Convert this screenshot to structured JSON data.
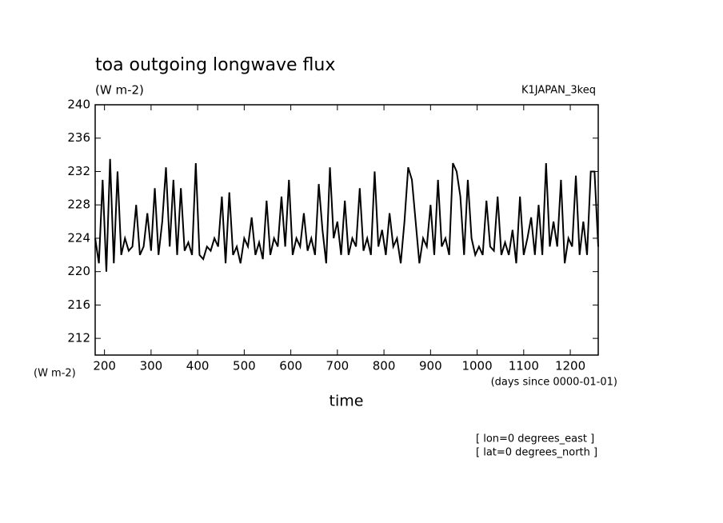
{
  "chart_data": {
    "type": "line",
    "title": "toa outgoing longwave flux",
    "y_units": "(W m-2)",
    "run_name": "K1JAPAN_3keq",
    "xlabel": "time",
    "x_units": "(days since 0000-01-01)",
    "notes": [
      "[ lon=0 degrees_east ]",
      "[ lat=0 degrees_north ]"
    ],
    "color": "#000000",
    "xlim": [
      180,
      1260
    ],
    "ylim": [
      210,
      240
    ],
    "xticks": [
      200,
      300,
      400,
      500,
      600,
      700,
      800,
      900,
      1000,
      1100,
      1200
    ],
    "yticks": [
      212,
      216,
      220,
      224,
      228,
      232,
      236,
      240
    ],
    "x": [
      180,
      188,
      196,
      204,
      212,
      220,
      228,
      236,
      244,
      252,
      260,
      268,
      276,
      284,
      292,
      300,
      308,
      316,
      324,
      332,
      340,
      348,
      356,
      364,
      372,
      380,
      388,
      396,
      404,
      412,
      420,
      428,
      436,
      444,
      452,
      460,
      468,
      476,
      484,
      492,
      500,
      508,
      516,
      524,
      532,
      540,
      548,
      556,
      564,
      572,
      580,
      588,
      596,
      604,
      612,
      620,
      628,
      636,
      644,
      652,
      660,
      668,
      676,
      684,
      692,
      700,
      708,
      716,
      724,
      732,
      740,
      748,
      756,
      764,
      772,
      780,
      788,
      796,
      804,
      812,
      820,
      828,
      836,
      844,
      852,
      860,
      868,
      876,
      884,
      892,
      900,
      908,
      916,
      924,
      932,
      940,
      948,
      956,
      964,
      972,
      980,
      988,
      996,
      1004,
      1012,
      1020,
      1028,
      1036,
      1044,
      1052,
      1060,
      1068,
      1076,
      1084,
      1092,
      1100,
      1108,
      1116,
      1124,
      1132,
      1140,
      1148,
      1156,
      1164,
      1172,
      1180,
      1188,
      1196,
      1204,
      1212,
      1220,
      1228,
      1236,
      1244,
      1252,
      1260
    ],
    "values": [
      224,
      221,
      231,
      220,
      233.5,
      221,
      232,
      222,
      224,
      222.5,
      223,
      228,
      222,
      223,
      227,
      222.5,
      230,
      222,
      226,
      232.5,
      223,
      231,
      222,
      230,
      222.5,
      223.5,
      222,
      233,
      222,
      221.5,
      223,
      222.5,
      224,
      223,
      229,
      221,
      229.5,
      222,
      223,
      221,
      224,
      223,
      226.5,
      222,
      223.5,
      221.5,
      228.5,
      222,
      224,
      223,
      229,
      223,
      231,
      222,
      224,
      223,
      227,
      222.5,
      224,
      222,
      230.5,
      225,
      221,
      232.5,
      224,
      226,
      222,
      228.5,
      222,
      224,
      223,
      230,
      222.5,
      224,
      222,
      232,
      223,
      225,
      222,
      227,
      223,
      224,
      221,
      226,
      232.5,
      231,
      226,
      221,
      224,
      223,
      228,
      222,
      231,
      223,
      224,
      222,
      233,
      232,
      229,
      222,
      231,
      224,
      222,
      223,
      222,
      228.5,
      223,
      222.5,
      229,
      222,
      223.5,
      222,
      225,
      221,
      229,
      222,
      224,
      226.5,
      222,
      228,
      222,
      233,
      223,
      226,
      223,
      231,
      221,
      224,
      223,
      231.5,
      222,
      226,
      222,
      232,
      232,
      223
    ]
  }
}
